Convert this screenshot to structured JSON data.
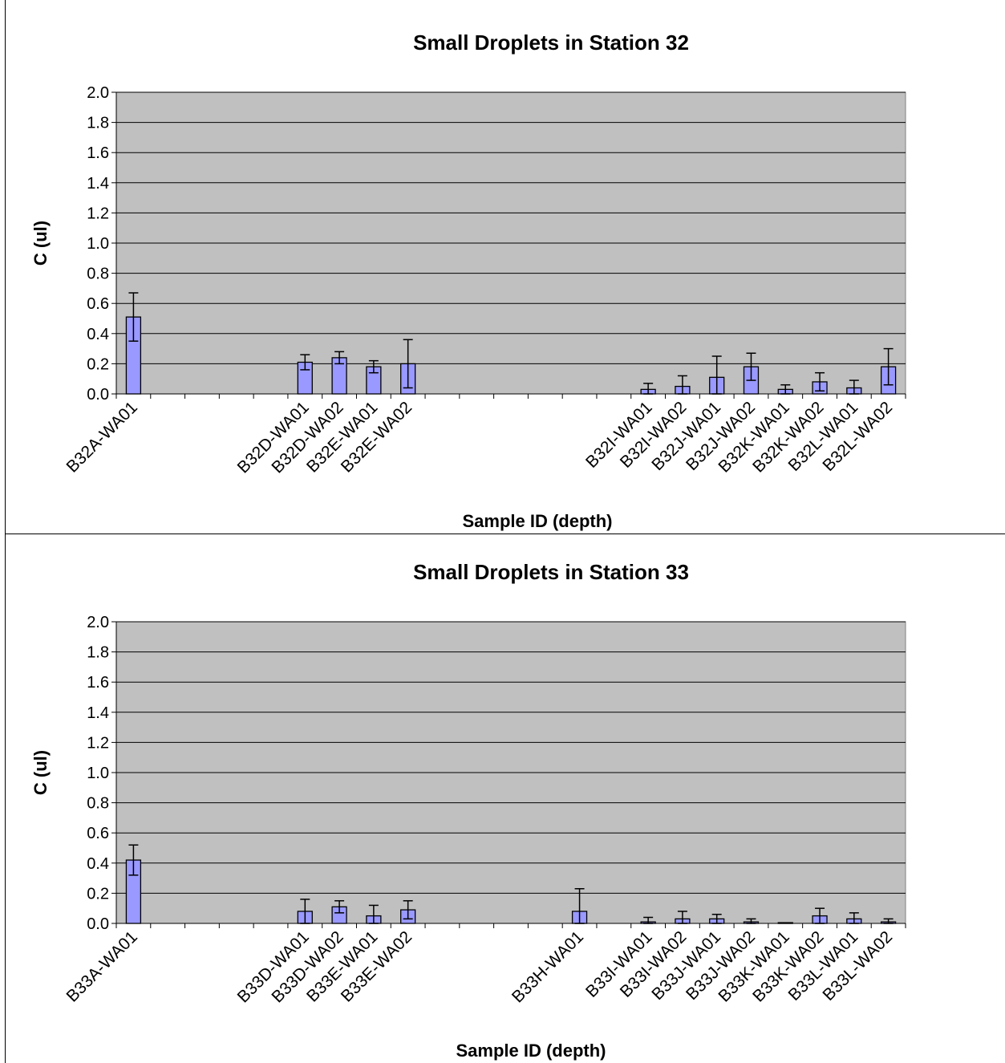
{
  "chart_data": [
    {
      "type": "bar",
      "title": "Small Droplets in Station 32",
      "xlabel": "Sample ID (depth)",
      "ylabel": "C (ul)",
      "ylim": [
        0,
        2.0
      ],
      "yticks": [
        "0.0",
        "0.2",
        "0.4",
        "0.6",
        "0.8",
        "1.0",
        "1.2",
        "1.4",
        "1.6",
        "1.8",
        "2.0"
      ],
      "grid": true,
      "plot_background": "#c0c0c0",
      "bar_color": "#9999ff",
      "slots": 23,
      "categories": [
        "B32A-WA01",
        "B32D-WA01",
        "B32D-WA02",
        "B32E-WA01",
        "B32E-WA02",
        "B32I-WA01",
        "B32I-WA02",
        "B32J-WA01",
        "B32J-WA02",
        "B32K-WA01",
        "B32K-WA02",
        "B32L-WA01",
        "B32L-WA02"
      ],
      "slot_index": [
        0,
        5,
        6,
        7,
        8,
        15,
        16,
        17,
        18,
        19,
        20,
        21,
        22
      ],
      "values": [
        0.51,
        0.21,
        0.24,
        0.18,
        0.2,
        0.03,
        0.05,
        0.11,
        0.18,
        0.03,
        0.08,
        0.04,
        0.18
      ],
      "errors": [
        0.16,
        0.05,
        0.04,
        0.04,
        0.16,
        0.04,
        0.07,
        0.14,
        0.09,
        0.03,
        0.06,
        0.05,
        0.12
      ]
    },
    {
      "type": "bar",
      "title": "Small Droplets in Station 33",
      "xlabel": "Sample ID (depth)",
      "ylabel": "C (ul)",
      "ylim": [
        0,
        2.0
      ],
      "yticks": [
        "0.0",
        "0.2",
        "0.4",
        "0.6",
        "0.8",
        "1.0",
        "1.2",
        "1.4",
        "1.6",
        "1.8",
        "2.0"
      ],
      "grid": true,
      "plot_background": "#c0c0c0",
      "bar_color": "#9999ff",
      "slots": 23,
      "categories": [
        "B33A-WA01",
        "B33D-WA01",
        "B33D-WA02",
        "B33E-WA01",
        "B33E-WA02",
        "B33H-WA01",
        "B33I-WA01",
        "B33I-WA02",
        "B33J-WA01",
        "B33J-WA02",
        "B33K-WA01",
        "B33K-WA02",
        "B33L-WA01",
        "B33L-WA02"
      ],
      "slot_index": [
        0,
        5,
        6,
        7,
        8,
        13,
        15,
        16,
        17,
        18,
        19,
        20,
        21,
        22
      ],
      "values": [
        0.42,
        0.08,
        0.11,
        0.05,
        0.09,
        0.08,
        0.01,
        0.03,
        0.03,
        0.01,
        0.005,
        0.05,
        0.03,
        0.01
      ],
      "errors": [
        0.1,
        0.08,
        0.04,
        0.07,
        0.06,
        0.15,
        0.03,
        0.05,
        0.03,
        0.02,
        0.0,
        0.05,
        0.04,
        0.02
      ]
    }
  ]
}
